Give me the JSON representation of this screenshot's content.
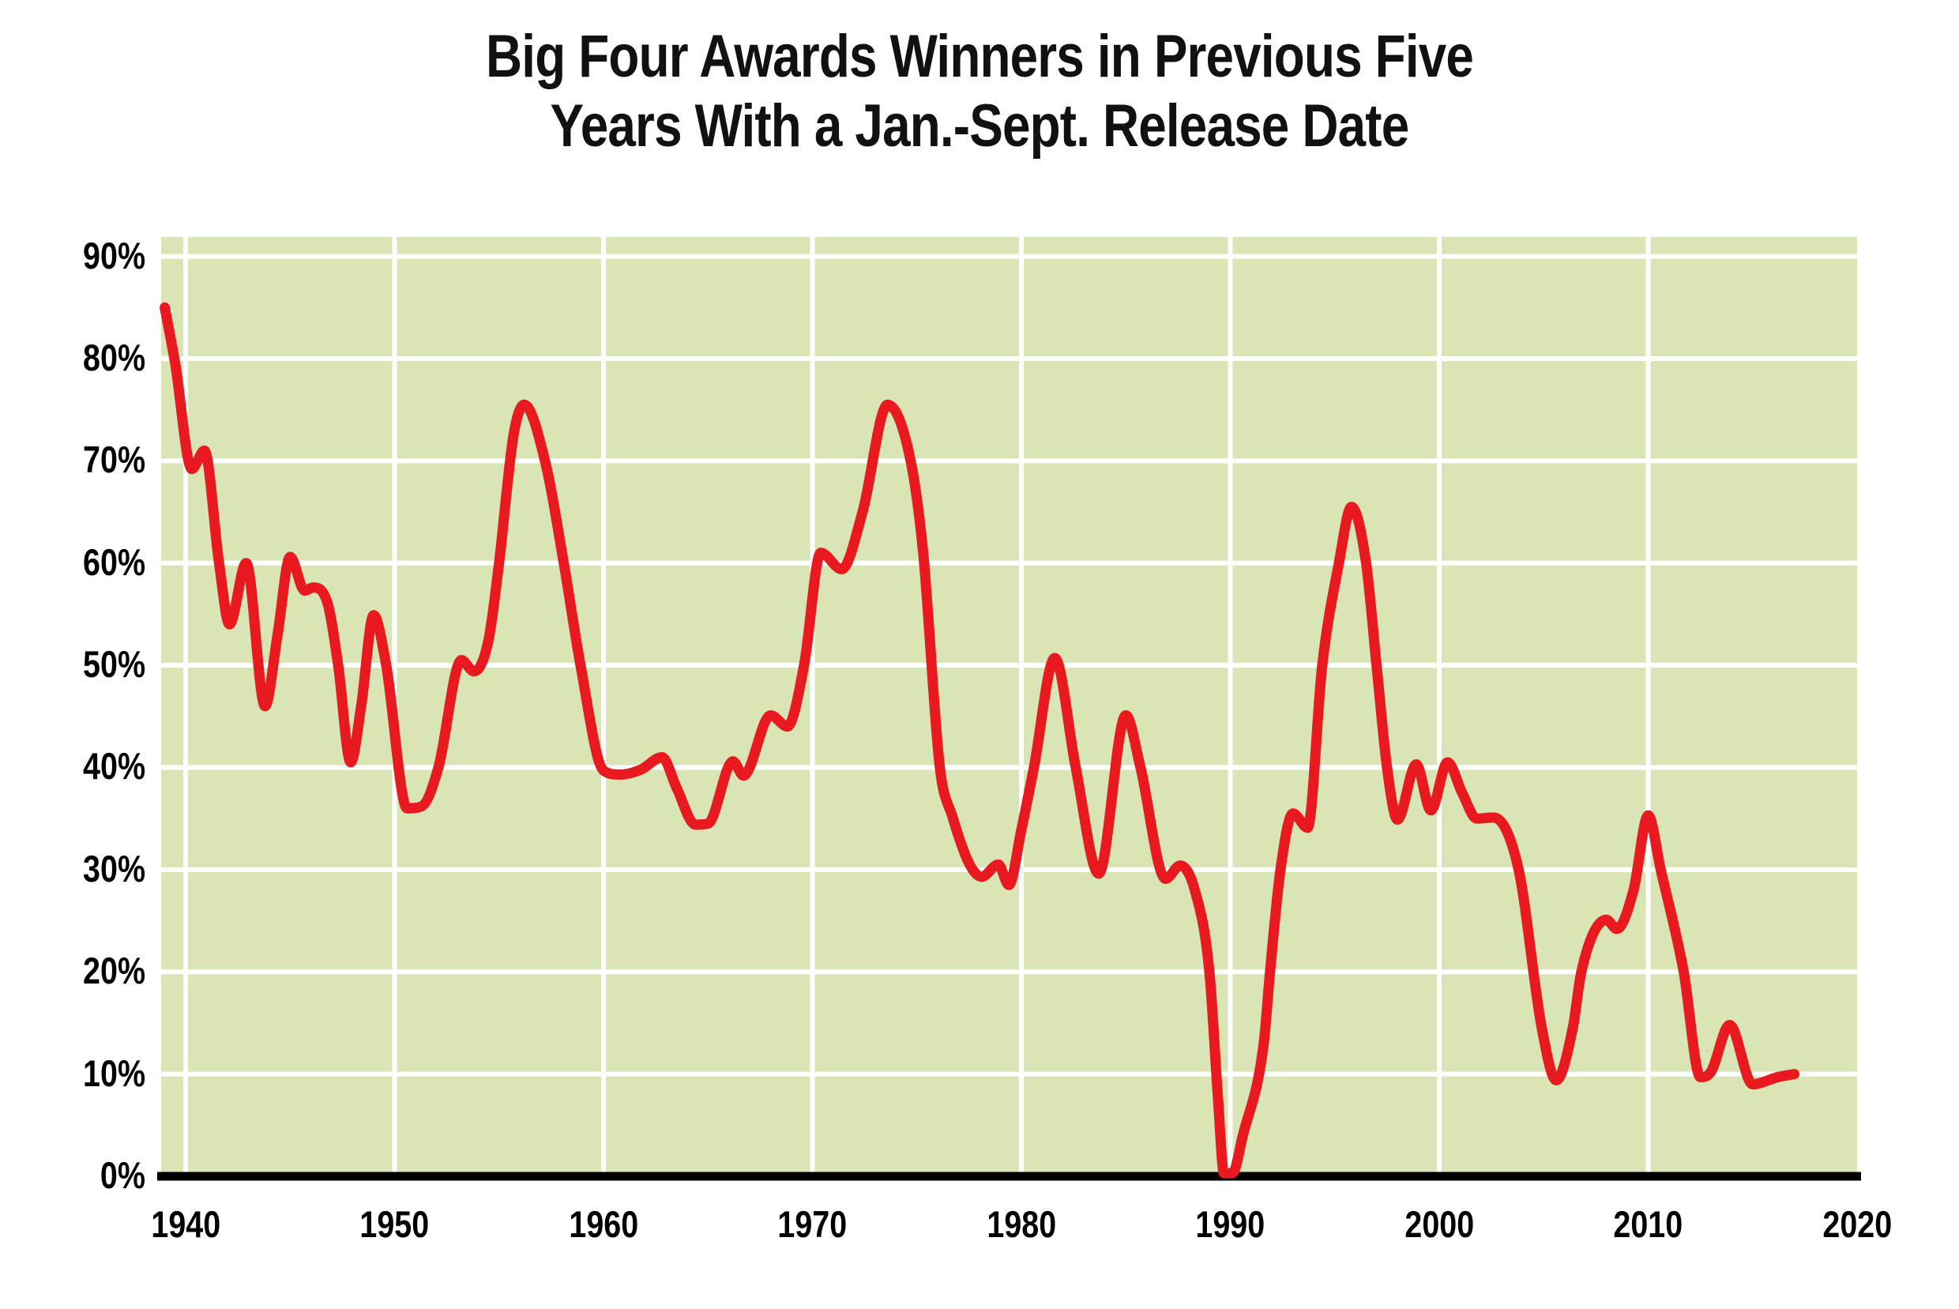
{
  "title": {
    "line1": "Big Four Awards Winners in Previous Five",
    "line2": "Years With a Jan.-Sept. Release Date"
  },
  "colors": {
    "background": "#ffffff",
    "plot_background": "#d9e5b5",
    "line": "#e8191f",
    "gridline": "#ffffff",
    "axis": "#000000",
    "text": "#111111"
  },
  "chart_data": {
    "type": "line",
    "title": "Big Four Awards Winners in Previous Five Years With a Jan.-Sept. Release Date",
    "xlabel": "",
    "ylabel": "",
    "grid": true,
    "legend_position": "none",
    "x_range": [
      1938.8,
      2020
    ],
    "y_range": [
      0,
      90
    ],
    "x_ticks": [
      {
        "year": 1940,
        "label": "1940"
      },
      {
        "year": 1950,
        "label": "1950"
      },
      {
        "year": 1960,
        "label": "1960"
      },
      {
        "year": 1970,
        "label": "1970"
      },
      {
        "year": 1980,
        "label": "1980"
      },
      {
        "year": 1990,
        "label": "1990"
      },
      {
        "year": 2000,
        "label": "2000"
      },
      {
        "year": 2010,
        "label": "2010"
      },
      {
        "year": 2020,
        "label": "2020"
      }
    ],
    "y_ticks": [
      {
        "value": 0,
        "label": "0%"
      },
      {
        "value": 10,
        "label": "10%"
      },
      {
        "value": 20,
        "label": "20%"
      },
      {
        "value": 30,
        "label": "30%"
      },
      {
        "value": 40,
        "label": "40%"
      },
      {
        "value": 50,
        "label": "50%"
      },
      {
        "value": 60,
        "label": "60%"
      },
      {
        "value": 70,
        "label": "70%"
      },
      {
        "value": 80,
        "label": "80%"
      },
      {
        "value": 90,
        "label": "90%"
      }
    ],
    "series": [
      {
        "points": [
          [
            1939.0,
            85
          ],
          [
            1939.5,
            79.5
          ],
          [
            1940.3,
            69.2
          ],
          [
            1940.9,
            71
          ],
          [
            1941.6,
            60
          ],
          [
            1942.1,
            54
          ],
          [
            1942.9,
            60
          ],
          [
            1943.8,
            46
          ],
          [
            1944.4,
            53
          ],
          [
            1945.0,
            60.6
          ],
          [
            1945.7,
            57.3
          ],
          [
            1946.1,
            57.6
          ],
          [
            1946.8,
            56
          ],
          [
            1947.3,
            50
          ],
          [
            1947.9,
            40.5
          ],
          [
            1948.4,
            46
          ],
          [
            1949.0,
            54.9
          ],
          [
            1949.6,
            50
          ],
          [
            1950.6,
            36
          ],
          [
            1951.3,
            36.2
          ],
          [
            1952.1,
            40
          ],
          [
            1953.2,
            50.5
          ],
          [
            1953.8,
            49.4
          ],
          [
            1954.5,
            52.5
          ],
          [
            1955.0,
            60
          ],
          [
            1955.7,
            72.6
          ],
          [
            1956.2,
            75.5
          ],
          [
            1957.2,
            70
          ],
          [
            1958.1,
            60
          ],
          [
            1958.9,
            50
          ],
          [
            1960.0,
            39.7
          ],
          [
            1960.8,
            39.3
          ],
          [
            1961.8,
            39.8
          ],
          [
            1962.8,
            41
          ],
          [
            1963.5,
            38
          ],
          [
            1964.4,
            34.4
          ],
          [
            1965.0,
            34.5
          ],
          [
            1966.2,
            40.6
          ],
          [
            1966.7,
            39.2
          ],
          [
            1968.0,
            45.1
          ],
          [
            1968.8,
            44
          ],
          [
            1969.6,
            50
          ],
          [
            1970.4,
            61
          ],
          [
            1971.4,
            59.4
          ],
          [
            1972.4,
            65
          ],
          [
            1973.6,
            75.5
          ],
          [
            1974.7,
            70
          ],
          [
            1975.3,
            61
          ],
          [
            1976.1,
            40
          ],
          [
            1976.7,
            35.2
          ],
          [
            1977.5,
            30.6
          ],
          [
            1978.1,
            29.3
          ],
          [
            1978.9,
            30.5
          ],
          [
            1979.4,
            28.5
          ],
          [
            1980.0,
            33.9
          ],
          [
            1980.6,
            40
          ],
          [
            1981.6,
            50.7
          ],
          [
            1982.6,
            40
          ],
          [
            1983.7,
            29.6
          ],
          [
            1985.0,
            45.1
          ],
          [
            1985.7,
            40
          ],
          [
            1986.9,
            29.1
          ],
          [
            1987.6,
            30.4
          ],
          [
            1988.3,
            28
          ],
          [
            1989.0,
            20
          ],
          [
            1989.4,
            8
          ],
          [
            1989.7,
            0.3
          ],
          [
            1990.1,
            0.3
          ],
          [
            1990.6,
            4
          ],
          [
            1991.6,
            13
          ],
          [
            1991.9,
            20
          ],
          [
            1992.4,
            30
          ],
          [
            1993.0,
            35.5
          ],
          [
            1993.7,
            34.1
          ],
          [
            1994.4,
            50
          ],
          [
            1995.2,
            60
          ],
          [
            1995.8,
            65.5
          ],
          [
            1996.5,
            60
          ],
          [
            1997.0,
            50
          ],
          [
            1997.5,
            40
          ],
          [
            1998.0,
            34.9
          ],
          [
            1998.9,
            40.3
          ],
          [
            1999.6,
            35.8
          ],
          [
            2000.4,
            40.5
          ],
          [
            2001.1,
            37.5
          ],
          [
            2001.8,
            35
          ],
          [
            2002.6,
            35.1
          ],
          [
            2003.8,
            30
          ],
          [
            2004.9,
            14.6
          ],
          [
            2005.6,
            9.4
          ],
          [
            2006.4,
            14.6
          ],
          [
            2006.8,
            20
          ],
          [
            2008.0,
            25.1
          ],
          [
            2008.5,
            24.2
          ],
          [
            2009.3,
            28
          ],
          [
            2010.0,
            35.3
          ],
          [
            2010.6,
            30
          ],
          [
            2011.7,
            20
          ],
          [
            2012.5,
            9.7
          ],
          [
            2013.0,
            10.2
          ],
          [
            2013.9,
            14.8
          ],
          [
            2015.0,
            9
          ],
          [
            2016.2,
            9.7
          ],
          [
            2017.0,
            10
          ]
        ]
      }
    ]
  }
}
